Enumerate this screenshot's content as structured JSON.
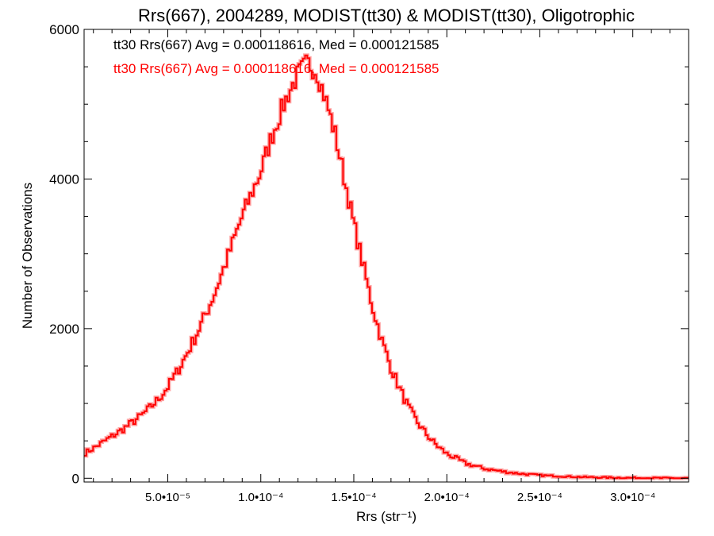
{
  "chart_data": {
    "type": "histogram",
    "title": "Rrs(667), 2004289, MODIST(tt30) & MODIST(tt30), Oligotrophic",
    "xlabel": "Rrs (str⁻¹)",
    "ylabel": "Number of Observations",
    "xlim": [
      5e-06,
      0.00033
    ],
    "ylim": [
      -50,
      6000
    ],
    "x_ticks": [
      {
        "value": 5e-05,
        "label": "5.0•10⁻⁵"
      },
      {
        "value": 0.0001,
        "label": "1.0•10⁻⁴"
      },
      {
        "value": 0.00015,
        "label": "1.5•10⁻⁴"
      },
      {
        "value": 0.0002,
        "label": "2.0•10⁻⁴"
      },
      {
        "value": 0.00025,
        "label": "2.5•10⁻⁴"
      },
      {
        "value": 0.0003,
        "label": "3.0•10⁻⁴"
      }
    ],
    "y_ticks": [
      {
        "value": 0,
        "label": "0"
      },
      {
        "value": 2000,
        "label": "2000"
      },
      {
        "value": 4000,
        "label": "4000"
      },
      {
        "value": 6000,
        "label": "6000"
      }
    ],
    "grid": false,
    "annotations": [
      {
        "text": "tt30 Rrs(667) Avg = 0.000118616, Med = 0.000121585",
        "color": "#000000"
      },
      {
        "text": "tt30 Rrs(667) Avg = 0.000118616, Med = 0.000121585",
        "color": "#ff0000"
      }
    ],
    "series": [
      {
        "color": "#ff0000",
        "x": [
          5e-06,
          1e-05,
          1.5e-05,
          2e-05,
          2.5e-05,
          3e-05,
          3.5e-05,
          4e-05,
          4.5e-05,
          5e-05,
          5.5e-05,
          6e-05,
          6.5e-05,
          7e-05,
          7.5e-05,
          8e-05,
          8.5e-05,
          9e-05,
          9.5e-05,
          0.0001,
          0.000105,
          0.00011,
          0.000115,
          0.00012,
          0.000125,
          0.00013,
          0.000135,
          0.00014,
          0.000145,
          0.00015,
          0.000155,
          0.00016,
          0.000165,
          0.00017,
          0.000175,
          0.00018,
          0.000185,
          0.00019,
          0.000195,
          0.0002,
          0.00021,
          0.00022,
          0.00023,
          0.00024,
          0.00025,
          0.00026,
          0.00027,
          0.00028,
          0.00029,
          0.0003,
          0.00031,
          0.00032,
          0.00033
        ],
        "y": [
          330,
          400,
          480,
          560,
          640,
          730,
          820,
          930,
          1060,
          1220,
          1420,
          1650,
          1900,
          2170,
          2460,
          2800,
          3150,
          3500,
          3800,
          4100,
          4500,
          4850,
          5150,
          5400,
          5550,
          5450,
          5050,
          4600,
          4000,
          3400,
          2850,
          2300,
          1850,
          1480,
          1180,
          920,
          720,
          560,
          430,
          330,
          200,
          130,
          90,
          60,
          40,
          28,
          18,
          12,
          8,
          5,
          3,
          2,
          1
        ]
      }
    ]
  }
}
